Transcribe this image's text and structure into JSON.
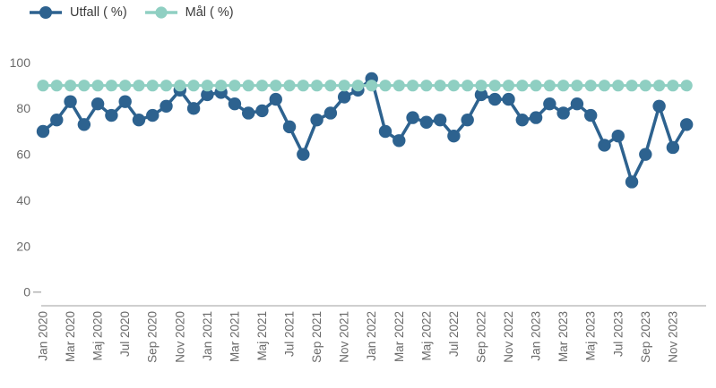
{
  "legend": {
    "items": [
      {
        "label": "Utfall ( %)",
        "color": "#2d628f"
      },
      {
        "label": "Mål ( %)",
        "color": "#8fcfc2"
      }
    ]
  },
  "axis": {
    "y_tick_labels": [
      "0",
      "20",
      "40",
      "60",
      "80",
      "100"
    ],
    "x_tick_labels": [
      "Jan 2020",
      "Mar 2020",
      "Maj 2020",
      "Jul 2020",
      "Sep 2020",
      "Nov 2020",
      "Jan 2021",
      "Mar 2021",
      "Maj 2021",
      "Jul 2021",
      "Sep 2021",
      "Nov 2021",
      "Jan 2022",
      "Mar 2022",
      "Maj 2022",
      "Jul 2022",
      "Sep 2022",
      "Nov 2022",
      "Jan 2023",
      "Mar 2023",
      "Maj 2023",
      "Jul 2023",
      "Sep 2023",
      "Nov 2023"
    ]
  },
  "colors": {
    "utfall": "#2d628f",
    "mal": "#8fcfc2",
    "axis_text": "#6b6b6b",
    "axis_line": "#cfcfcf"
  },
  "chart_data": {
    "type": "line",
    "title": "",
    "xlabel": "",
    "ylabel": "",
    "ylim": [
      0,
      100
    ],
    "yticks": [
      0,
      20,
      40,
      60,
      80,
      100
    ],
    "grid": false,
    "legend_position": "top-left",
    "x_tick_every": 2,
    "categories": [
      "Jan 2020",
      "Feb 2020",
      "Mar 2020",
      "Apr 2020",
      "Maj 2020",
      "Jun 2020",
      "Jul 2020",
      "Aug 2020",
      "Sep 2020",
      "Okt 2020",
      "Nov 2020",
      "Dec 2020",
      "Jan 2021",
      "Feb 2021",
      "Mar 2021",
      "Apr 2021",
      "Maj 2021",
      "Jun 2021",
      "Jul 2021",
      "Aug 2021",
      "Sep 2021",
      "Okt 2021",
      "Nov 2021",
      "Dec 2021",
      "Jan 2022",
      "Feb 2022",
      "Mar 2022",
      "Apr 2022",
      "Maj 2022",
      "Jun 2022",
      "Jul 2022",
      "Aug 2022",
      "Sep 2022",
      "Okt 2022",
      "Nov 2022",
      "Dec 2022",
      "Jan 2023",
      "Feb 2023",
      "Mar 2023",
      "Apr 2023",
      "Maj 2023",
      "Jun 2023",
      "Jul 2023",
      "Aug 2023",
      "Sep 2023",
      "Okt 2023",
      "Nov 2023",
      "Dec 2023"
    ],
    "series": [
      {
        "name": "Utfall ( %)",
        "color": "#2d628f",
        "values": [
          70,
          75,
          83,
          73,
          82,
          77,
          83,
          75,
          77,
          81,
          88,
          80,
          86,
          87,
          82,
          78,
          79,
          84,
          72,
          60,
          75,
          78,
          85,
          88,
          93,
          70,
          66,
          76,
          74,
          75,
          68,
          75,
          86,
          84,
          84,
          75,
          76,
          82,
          78,
          82,
          77,
          64,
          68,
          48,
          60,
          81,
          63,
          73
        ]
      },
      {
        "name": "Mål ( %)",
        "color": "#8fcfc2",
        "values": [
          90,
          90,
          90,
          90,
          90,
          90,
          90,
          90,
          90,
          90,
          90,
          90,
          90,
          90,
          90,
          90,
          90,
          90,
          90,
          90,
          90,
          90,
          90,
          90,
          90,
          90,
          90,
          90,
          90,
          90,
          90,
          90,
          90,
          90,
          90,
          90,
          90,
          90,
          90,
          90,
          90,
          90,
          90,
          90,
          90,
          90,
          90,
          90
        ]
      }
    ]
  }
}
